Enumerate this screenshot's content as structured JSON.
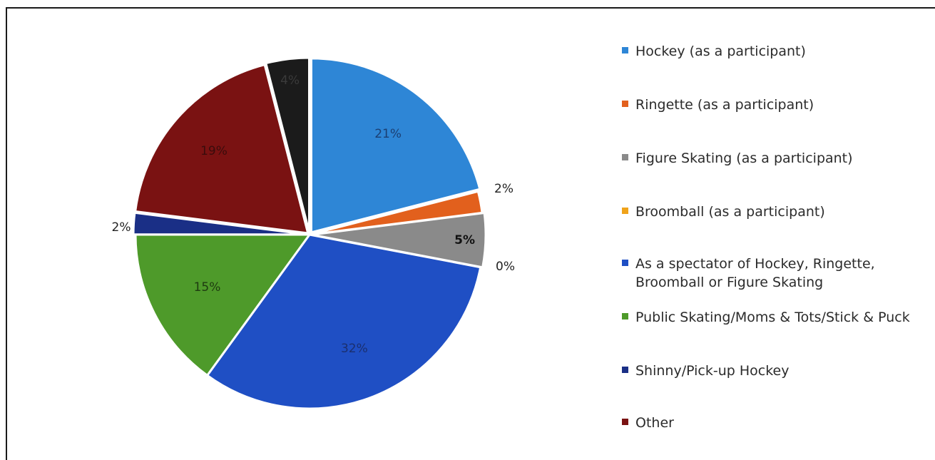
{
  "chart_data": {
    "type": "pie",
    "title": "",
    "start_angle_deg": 0,
    "direction": "clockwise",
    "slices": [
      {
        "label": "Hockey (as a participant)",
        "value": 21,
        "display": "21%",
        "color": "#2e86d6",
        "label_color": "#1b3f73"
      },
      {
        "label": "Ringette (as a participant)",
        "value": 2,
        "display": "2%",
        "color": "#e2601d",
        "label_color": "#222222"
      },
      {
        "label": "Figure Skating (as a participant)",
        "value": 5,
        "display": "5%",
        "color": "#8a8a8a",
        "label_color": "#111111"
      },
      {
        "label": "Broomball (as a participant)",
        "value": 0,
        "display": "0%",
        "color": "#f0a31a",
        "label_color": "#222222"
      },
      {
        "label": "As a spectator of Hockey, Ringette, Broomball or Figure Skating",
        "value": 32,
        "display": "32%",
        "color": "#1f4fc4",
        "label_color": "#1b2f6e"
      },
      {
        "label": "Public Skating/Moms & Tots/Stick & Puck",
        "value": 15,
        "display": "15%",
        "color": "#4e9a2a",
        "label_color": "#1e3b10"
      },
      {
        "label": "Shinny/Pick-up Hockey",
        "value": 2,
        "display": "2%",
        "color": "#1a2f86",
        "label_color": "#222222"
      },
      {
        "label": "Other",
        "value": 19,
        "display": "19%",
        "color": "#7a1212",
        "label_color": "#3a0c0c"
      },
      {
        "label": "",
        "value": 4,
        "display": "4%",
        "color": "#1b1b1b",
        "label_color": "#3a3a3a"
      }
    ],
    "legend": {
      "position": "right",
      "entries": [
        {
          "label": "Hockey (as a participant)",
          "color": "#2e86d6"
        },
        {
          "label": "Ringette (as a participant)",
          "color": "#e2601d"
        },
        {
          "label": "Figure Skating (as a participant)",
          "color": "#8a8a8a"
        },
        {
          "label": "Broomball (as a participant)",
          "color": "#f0a31a"
        },
        {
          "label": "As a spectator of Hockey, Ringette, Broomball or Figure Skating",
          "color": "#1f4fc4"
        },
        {
          "label": "Public Skating/Moms & Tots/Stick & Puck",
          "color": "#4e9a2a"
        },
        {
          "label": "Shinny/Pick-up Hockey",
          "color": "#1a2f86"
        },
        {
          "label": "Other",
          "color": "#7a1212"
        }
      ]
    }
  }
}
